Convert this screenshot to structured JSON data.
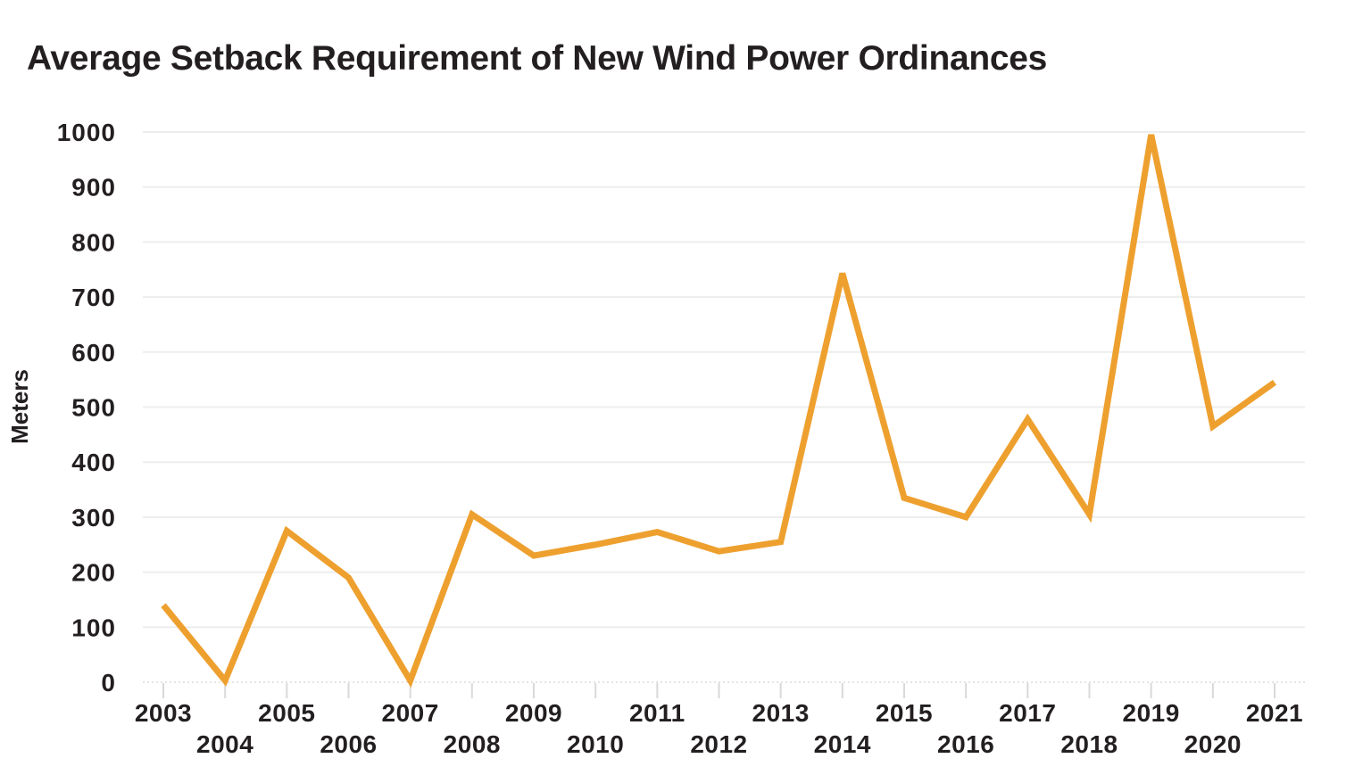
{
  "chart_data": {
    "type": "line",
    "title": "Average Setback Requirement of New Wind Power Ordinances",
    "ylabel": "Meters",
    "xlabel": "",
    "x": [
      2003,
      2004,
      2005,
      2006,
      2007,
      2008,
      2009,
      2010,
      2011,
      2012,
      2013,
      2014,
      2015,
      2016,
      2017,
      2018,
      2019,
      2020,
      2021
    ],
    "values": [
      140,
      3,
      275,
      190,
      3,
      305,
      230,
      250,
      273,
      238,
      255,
      743,
      335,
      300,
      478,
      305,
      995,
      465,
      545
    ],
    "ylim": [
      0,
      1000
    ],
    "ytick_step": 100,
    "grid": true,
    "legend": "none",
    "x_labels_staggered": true,
    "colors": {
      "line": "#EEA02F",
      "text": "#231F20",
      "gridline": "#EDEDED",
      "zero_line": "#DBDBDB",
      "tick": "#D9D9D9",
      "background": "#FFFFFF"
    }
  }
}
